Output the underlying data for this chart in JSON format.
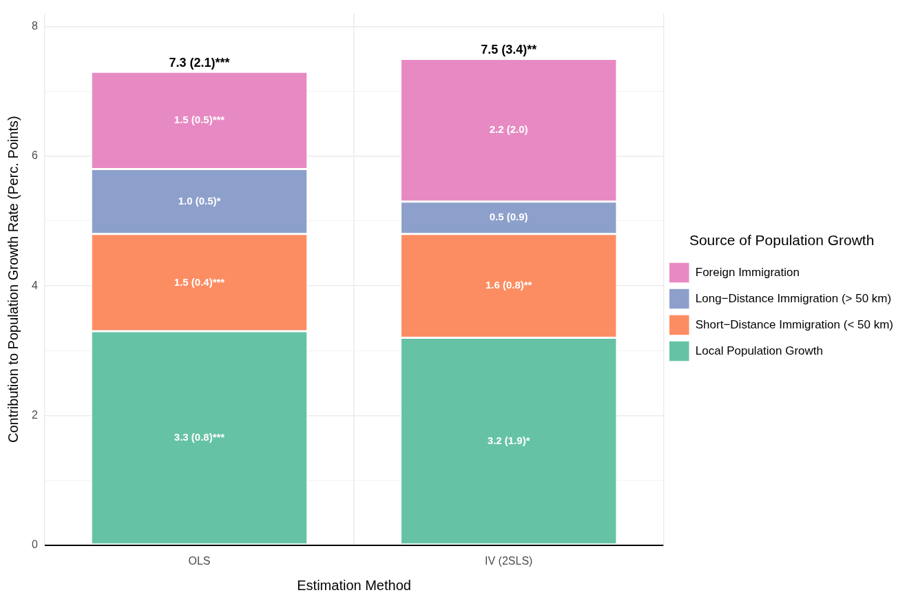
{
  "chart_data": {
    "type": "bar",
    "stacked": true,
    "xlabel": "Estimation Method",
    "ylabel": "Contribution to Population Growth Rate (Perc. Points)",
    "legend_title": "Source of Population Growth",
    "legend": "right",
    "grid": true,
    "categories": [
      "OLS",
      "IV (2SLS)"
    ],
    "ylim": [
      0,
      8.2
    ],
    "yticks": [
      0,
      {
        "value": 1,
        "label": null
      },
      2,
      {
        "value": 3,
        "label": null
      },
      4,
      {
        "value": 5,
        "label": null
      },
      6,
      {
        "value": 7,
        "label": null
      },
      8
    ],
    "series": [
      {
        "name": "Local Population Growth",
        "color": "#66c2a5",
        "values": [
          3.3,
          3.2
        ],
        "value_labels": [
          "3.3 (0.8)***",
          "3.2 (1.9)*"
        ]
      },
      {
        "name": "Short−Distance Immigration (< 50 km)",
        "color": "#fc8d62",
        "values": [
          1.5,
          1.6
        ],
        "value_labels": [
          "1.5 (0.4)***",
          "1.6 (0.8)**"
        ]
      },
      {
        "name": "Long−Distance Immigration (> 50 km)",
        "color": "#8da0cb",
        "values": [
          1.0,
          0.5
        ],
        "value_labels": [
          "1.0 (0.5)*",
          "0.5 (0.9)"
        ]
      },
      {
        "name": "Foreign Immigration",
        "color": "#e78ac3",
        "values": [
          1.5,
          2.2
        ],
        "value_labels": [
          "1.5 (0.5)***",
          "2.2 (2.0)"
        ]
      }
    ],
    "totals": [
      "7.3 (2.1)***",
      "7.5 (3.4)**"
    ]
  }
}
